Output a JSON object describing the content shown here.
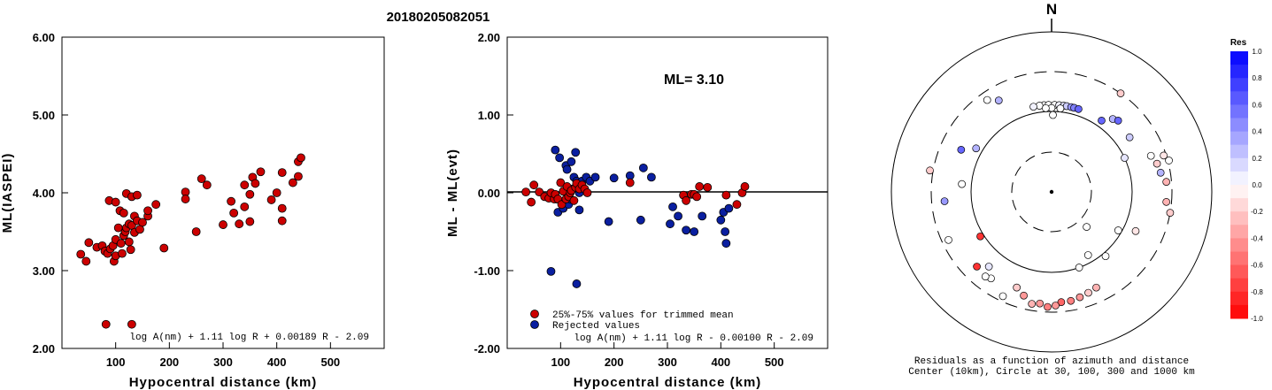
{
  "title": "20180205082051",
  "chart_data": [
    {
      "type": "scatter",
      "xlabel": "Hypocentral distance (km)",
      "ylabel": "ML(IASPEI)",
      "xlim": [
        0,
        600
      ],
      "ylim": [
        2.0,
        6.0
      ],
      "x_ticks": [
        "100",
        "200",
        "300",
        "400",
        "500"
      ],
      "y_ticks": [
        "2.00",
        "3.00",
        "4.00",
        "5.00",
        "6.00"
      ],
      "formula": "log A(nm) + 1.11 log R + 0.00189 R - 2.09",
      "marker_color": "#cc0000",
      "points": [
        [
          35,
          3.21
        ],
        [
          45,
          3.12
        ],
        [
          50,
          3.36
        ],
        [
          65,
          3.3
        ],
        [
          75,
          3.32
        ],
        [
          80,
          3.25
        ],
        [
          82,
          2.31
        ],
        [
          85,
          3.22
        ],
        [
          88,
          3.9
        ],
        [
          90,
          3.28
        ],
        [
          95,
          3.32
        ],
        [
          97,
          3.12
        ],
        [
          100,
          3.19
        ],
        [
          100,
          3.4
        ],
        [
          100,
          3.88
        ],
        [
          105,
          3.55
        ],
        [
          108,
          3.77
        ],
        [
          110,
          3.35
        ],
        [
          112,
          3.22
        ],
        [
          115,
          3.45
        ],
        [
          115,
          3.74
        ],
        [
          118,
          3.5
        ],
        [
          120,
          3.99
        ],
        [
          120,
          3.55
        ],
        [
          125,
          3.6
        ],
        [
          125,
          3.37
        ],
        [
          128,
          3.27
        ],
        [
          130,
          3.95
        ],
        [
          130,
          3.58
        ],
        [
          130,
          2.31
        ],
        [
          135,
          3.7
        ],
        [
          135,
          3.49
        ],
        [
          140,
          3.64
        ],
        [
          140,
          3.97
        ],
        [
          145,
          3.53
        ],
        [
          150,
          3.62
        ],
        [
          160,
          3.7
        ],
        [
          160,
          3.77
        ],
        [
          175,
          3.85
        ],
        [
          190,
          3.29
        ],
        [
          230,
          4.01
        ],
        [
          230,
          3.92
        ],
        [
          250,
          3.5
        ],
        [
          260,
          4.18
        ],
        [
          270,
          4.1
        ],
        [
          300,
          3.59
        ],
        [
          315,
          3.89
        ],
        [
          320,
          3.74
        ],
        [
          330,
          3.6
        ],
        [
          340,
          4.1
        ],
        [
          340,
          3.82
        ],
        [
          350,
          3.98
        ],
        [
          350,
          3.63
        ],
        [
          355,
          4.2
        ],
        [
          360,
          4.12
        ],
        [
          370,
          4.27
        ],
        [
          390,
          3.91
        ],
        [
          400,
          4.0
        ],
        [
          410,
          4.26
        ],
        [
          410,
          3.8
        ],
        [
          410,
          3.64
        ],
        [
          430,
          4.13
        ],
        [
          440,
          4.21
        ],
        [
          440,
          4.4
        ],
        [
          445,
          4.45
        ]
      ]
    },
    {
      "type": "scatter",
      "xlabel": "Hypocentral distance (km)",
      "ylabel": "ML - ML(evt)",
      "xlim": [
        0,
        600
      ],
      "ylim": [
        -2.0,
        2.0
      ],
      "x_ticks": [
        "100",
        "200",
        "300",
        "400",
        "500"
      ],
      "y_ticks": [
        "-2.00",
        "-1.00",
        "0.00",
        "1.00",
        "2.00"
      ],
      "ml_label": "ML= 3.10",
      "formula": "log A(nm) + 1.11 log R - 0.00100 R - 2.09",
      "legend": [
        {
          "label": "25%-75% values for trimmed mean",
          "color": "#cc0000"
        },
        {
          "label": "Rejected values",
          "color": "#0a1fa0"
        }
      ],
      "trimmed": [
        [
          35,
          0.01
        ],
        [
          45,
          -0.12
        ],
        [
          50,
          0.1
        ],
        [
          60,
          0.01
        ],
        [
          70,
          -0.05
        ],
        [
          78,
          -0.07
        ],
        [
          82,
          0.0
        ],
        [
          88,
          -0.08
        ],
        [
          90,
          -0.02
        ],
        [
          95,
          -0.08
        ],
        [
          100,
          0.13
        ],
        [
          102,
          -0.15
        ],
        [
          105,
          0.02
        ],
        [
          110,
          -0.08
        ],
        [
          112,
          0.08
        ],
        [
          115,
          -0.05
        ],
        [
          118,
          0.0
        ],
        [
          120,
          0.03
        ],
        [
          125,
          -0.1
        ],
        [
          128,
          0.07
        ],
        [
          130,
          0.12
        ],
        [
          135,
          0.05
        ],
        [
          140,
          0.1
        ],
        [
          145,
          0.05
        ],
        [
          150,
          0.0
        ],
        [
          230,
          0.13
        ],
        [
          330,
          -0.03
        ],
        [
          335,
          -0.1
        ],
        [
          345,
          -0.02
        ],
        [
          350,
          -0.02
        ],
        [
          355,
          -0.05
        ],
        [
          360,
          0.08
        ],
        [
          375,
          0.07
        ],
        [
          410,
          -0.03
        ],
        [
          430,
          -0.15
        ],
        [
          440,
          0.0
        ],
        [
          445,
          0.08
        ]
      ],
      "rejected": [
        [
          82,
          -1.01
        ],
        [
          90,
          0.55
        ],
        [
          92,
          -0.08
        ],
        [
          95,
          -0.25
        ],
        [
          98,
          0.45
        ],
        [
          105,
          -0.2
        ],
        [
          110,
          0.35
        ],
        [
          112,
          0.3
        ],
        [
          115,
          -0.15
        ],
        [
          118,
          -0.08
        ],
        [
          120,
          0.4
        ],
        [
          122,
          0.05
        ],
        [
          125,
          0.2
        ],
        [
          128,
          0.52
        ],
        [
          130,
          -1.17
        ],
        [
          130,
          0.15
        ],
        [
          135,
          -0.22
        ],
        [
          135,
          0.0
        ],
        [
          140,
          0.15
        ],
        [
          148,
          0.2
        ],
        [
          155,
          0.15
        ],
        [
          165,
          0.2
        ],
        [
          190,
          -0.37
        ],
        [
          200,
          0.19
        ],
        [
          230,
          0.22
        ],
        [
          250,
          -0.35
        ],
        [
          255,
          0.32
        ],
        [
          270,
          0.2
        ],
        [
          305,
          -0.4
        ],
        [
          310,
          -0.18
        ],
        [
          320,
          -0.3
        ],
        [
          335,
          -0.48
        ],
        [
          350,
          -0.5
        ],
        [
          365,
          -0.3
        ],
        [
          400,
          -0.35
        ],
        [
          405,
          -0.25
        ],
        [
          408,
          -0.5
        ],
        [
          410,
          -0.65
        ],
        [
          415,
          -0.2
        ]
      ]
    },
    {
      "type": "scatter",
      "title": "N",
      "caption_1": "Residuals as a function of azimuth and distance",
      "caption_2": "Center (10km), Circle at 30, 100, 300 and 1000 km",
      "colorbar_title": "Res",
      "colorbar_ticks": [
        "1.0",
        "0.8",
        "0.6",
        "0.4",
        "0.2",
        "0.0",
        "-0.2",
        "-0.4",
        "-0.6",
        "-0.8",
        "-1.0"
      ],
      "note": "points given as [azimuth_deg, distance_km, residual]",
      "points": [
        [
          355,
          120,
          0.0
        ],
        [
          358,
          120,
          0.0
        ],
        [
          2,
          120,
          0.0
        ],
        [
          5,
          120,
          0.05
        ],
        [
          8,
          120,
          0.1
        ],
        [
          10,
          120,
          0.2
        ],
        [
          13,
          120,
          0.4
        ],
        [
          15,
          120,
          0.5
        ],
        [
          18,
          120,
          0.6
        ],
        [
          352,
          120,
          0.0
        ],
        [
          348,
          120,
          0.05
        ],
        [
          6,
          110,
          0.0
        ],
        [
          0,
          110,
          0.0
        ],
        [
          -4,
          110,
          0.0
        ],
        [
          1,
          90,
          0.0
        ],
        [
          35,
          120,
          0.6
        ],
        [
          40,
          150,
          0.3
        ],
        [
          43,
          160,
          0.6
        ],
        [
          55,
          150,
          0.2
        ],
        [
          65,
          100,
          0.1
        ],
        [
          70,
          200,
          0.0
        ],
        [
          75,
          220,
          -0.2
        ],
        [
          72,
          280,
          -0.1
        ],
        [
          75,
          310,
          0.0
        ],
        [
          80,
          230,
          0.3
        ],
        [
          85,
          260,
          -0.3
        ],
        [
          95,
          260,
          -0.3
        ],
        [
          100,
          300,
          -0.2
        ],
        [
          115,
          140,
          -0.1
        ],
        [
          120,
          90,
          0.0
        ],
        [
          135,
          40,
          0.0
        ],
        [
          140,
          110,
          0.0
        ],
        [
          150,
          80,
          0.0
        ],
        [
          160,
          100,
          0.0
        ],
        [
          155,
          200,
          -0.3
        ],
        [
          160,
          210,
          -0.2
        ],
        [
          165,
          220,
          -0.4
        ],
        [
          170,
          230,
          -0.5
        ],
        [
          175,
          230,
          -0.6
        ],
        [
          178,
          250,
          -0.4
        ],
        [
          182,
          260,
          -0.5
        ],
        [
          186,
          240,
          -0.4
        ],
        [
          190,
          250,
          -0.3
        ],
        [
          195,
          210,
          -0.4
        ],
        [
          200,
          180,
          -0.2
        ],
        [
          205,
          260,
          0.0
        ],
        [
          215,
          200,
          0.0
        ],
        [
          218,
          210,
          0.0
        ],
        [
          220,
          160,
          0.1
        ],
        [
          225,
          200,
          -0.8
        ],
        [
          238,
          110,
          -0.8
        ],
        [
          245,
          250,
          0.0
        ],
        [
          265,
          210,
          0.4
        ],
        [
          275,
          130,
          0.0
        ],
        [
          280,
          330,
          -0.2
        ],
        [
          295,
          170,
          0.6
        ],
        [
          300,
          120,
          0.3
        ],
        [
          325,
          240,
          0.0
        ],
        [
          330,
          200,
          0.3
        ],
        [
          35,
          300,
          -0.2
        ]
      ]
    }
  ]
}
